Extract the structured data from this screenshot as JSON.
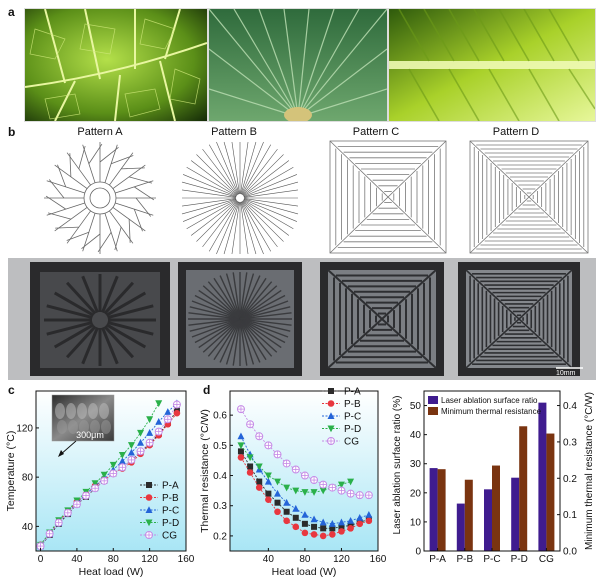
{
  "panel_letters": [
    "a",
    "b",
    "c",
    "d"
  ],
  "photos": [
    {
      "name": "leaf-vein-photo",
      "colors": [
        "#0e2206",
        "#9acd32",
        "#d7f08a"
      ]
    },
    {
      "name": "palm-leaf-photo",
      "colors": [
        "#1a4d2a",
        "#3f8a56",
        "#7fbc8a"
      ]
    },
    {
      "name": "banana-leaf-photo",
      "colors": [
        "#3f6e10",
        "#a9d12a",
        "#e7f79a"
      ]
    }
  ],
  "patterns": {
    "labels": [
      "Pattern A",
      "Pattern B",
      "Pattern C",
      "Pattern D"
    ]
  },
  "scale_bar": "10mm",
  "inset": {
    "scale_label": "300μm"
  },
  "colors": {
    "P-A": "#2b2b2b",
    "P-B": "#e8373f",
    "P-C": "#2464d8",
    "P-D": "#2ab04a",
    "CG": "#c58ae6",
    "bar_ratio": "#3f1c8f",
    "bar_resistance": "#7a3410"
  },
  "chart_data": [
    {
      "type": "line",
      "xlabel": "Heat load (W)",
      "ylabel": "Temperature (°C)",
      "xlim": [
        -5,
        160
      ],
      "ylim": [
        20,
        150
      ],
      "xticks": [
        0,
        40,
        80,
        120,
        160
      ],
      "yticks": [
        40,
        80,
        120
      ],
      "legend_loc": "bottom-right",
      "series": [
        {
          "name": "P-A",
          "marker": "square",
          "x": [
            0,
            10,
            20,
            30,
            40,
            50,
            60,
            70,
            80,
            90,
            100,
            110,
            120,
            130,
            140,
            150
          ],
          "y": [
            24,
            33,
            42,
            50,
            58,
            64,
            71,
            77,
            83,
            88,
            94,
            100,
            107,
            115,
            124,
            134
          ]
        },
        {
          "name": "P-B",
          "marker": "circle",
          "x": [
            0,
            10,
            20,
            30,
            40,
            50,
            60,
            70,
            80,
            90,
            100,
            110,
            120,
            130,
            140,
            150
          ],
          "y": [
            25,
            34,
            44,
            52,
            60,
            66,
            73,
            78,
            83,
            87,
            92,
            99,
            106,
            114,
            123,
            132
          ]
        },
        {
          "name": "P-C",
          "marker": "triangle-up",
          "x": [
            0,
            10,
            20,
            30,
            40,
            50,
            60,
            70,
            80,
            90,
            100,
            110,
            120,
            130,
            140,
            150
          ],
          "y": [
            24,
            34,
            43,
            51,
            59,
            66,
            73,
            79,
            86,
            93,
            100,
            108,
            116,
            125,
            133,
            140
          ]
        },
        {
          "name": "P-D",
          "marker": "triangle-down",
          "x": [
            0,
            10,
            20,
            30,
            40,
            50,
            60,
            70,
            80,
            90,
            100,
            110,
            120,
            130
          ],
          "y": [
            25,
            35,
            45,
            53,
            61,
            68,
            75,
            82,
            90,
            98,
            106,
            116,
            127,
            140
          ]
        },
        {
          "name": "CG",
          "marker": "circle-cross",
          "x": [
            0,
            10,
            20,
            30,
            40,
            50,
            60,
            70,
            80,
            90,
            100,
            110,
            120,
            130,
            140,
            150
          ],
          "y": [
            24,
            34,
            43,
            51,
            58,
            65,
            71,
            77,
            83,
            88,
            94,
            101,
            108,
            117,
            127,
            139
          ]
        }
      ]
    },
    {
      "type": "line",
      "xlabel": "Heat load (W)",
      "ylabel": "Thermal resistance (°C/W)",
      "xlim": [
        -2,
        160
      ],
      "ylim": [
        0.15,
        0.68
      ],
      "xticks": [
        40,
        80,
        120,
        160
      ],
      "yticks": [
        0.2,
        0.3,
        0.4,
        0.5,
        0.6
      ],
      "legend_loc": "top-right",
      "series": [
        {
          "name": "P-A",
          "marker": "square",
          "x": [
            10,
            20,
            30,
            40,
            50,
            60,
            70,
            80,
            90,
            100,
            110,
            120,
            130,
            140,
            150
          ],
          "y": [
            0.48,
            0.43,
            0.38,
            0.34,
            0.31,
            0.28,
            0.26,
            0.24,
            0.23,
            0.225,
            0.225,
            0.23,
            0.235,
            0.245,
            0.255
          ]
        },
        {
          "name": "P-B",
          "marker": "circle",
          "x": [
            10,
            20,
            30,
            40,
            50,
            60,
            70,
            80,
            90,
            100,
            110,
            120,
            130,
            140,
            150
          ],
          "y": [
            0.46,
            0.41,
            0.36,
            0.32,
            0.28,
            0.25,
            0.23,
            0.21,
            0.205,
            0.2,
            0.205,
            0.215,
            0.225,
            0.24,
            0.25
          ]
        },
        {
          "name": "P-C",
          "marker": "triangle-up",
          "x": [
            10,
            20,
            30,
            40,
            50,
            60,
            70,
            80,
            90,
            100,
            110,
            120,
            130,
            140,
            150
          ],
          "y": [
            0.53,
            0.47,
            0.42,
            0.38,
            0.34,
            0.31,
            0.29,
            0.27,
            0.255,
            0.245,
            0.24,
            0.245,
            0.25,
            0.26,
            0.27
          ]
        },
        {
          "name": "P-D",
          "marker": "triangle-down",
          "x": [
            10,
            20,
            30,
            40,
            50,
            60,
            70,
            80,
            90,
            100,
            110,
            120,
            130
          ],
          "y": [
            0.5,
            0.46,
            0.43,
            0.4,
            0.38,
            0.36,
            0.35,
            0.345,
            0.345,
            0.35,
            0.36,
            0.37,
            0.38
          ]
        },
        {
          "name": "CG",
          "marker": "circle-cross",
          "x": [
            10,
            20,
            30,
            40,
            50,
            60,
            70,
            80,
            90,
            100,
            110,
            120,
            130,
            140,
            150
          ],
          "y": [
            0.62,
            0.57,
            0.53,
            0.5,
            0.47,
            0.44,
            0.42,
            0.4,
            0.385,
            0.37,
            0.36,
            0.35,
            0.34,
            0.335,
            0.335
          ]
        }
      ]
    },
    {
      "type": "bar",
      "categories": [
        "P-A",
        "P-B",
        "P-C",
        "P-D",
        "CG"
      ],
      "ylabel": "Laser ablation surface ratio (%)",
      "y2label": "Minimum thermal resistance (°C/W)",
      "ylim": [
        0,
        55
      ],
      "y2lim": [
        0,
        0.44
      ],
      "yticks": [
        0,
        10,
        20,
        30,
        40,
        50
      ],
      "y2ticks": [
        0.0,
        0.1,
        0.2,
        0.3,
        0.4
      ],
      "legend_loc": "top-left",
      "series": [
        {
          "name": "Laser ablation surface ratio",
          "axis": "left",
          "values": [
            28.5,
            16.3,
            21.2,
            25.2,
            51.0
          ]
        },
        {
          "name": "Minimum thermal resistance",
          "axis": "right",
          "values": [
            0.225,
            0.196,
            0.235,
            0.343,
            0.323
          ]
        }
      ]
    }
  ]
}
